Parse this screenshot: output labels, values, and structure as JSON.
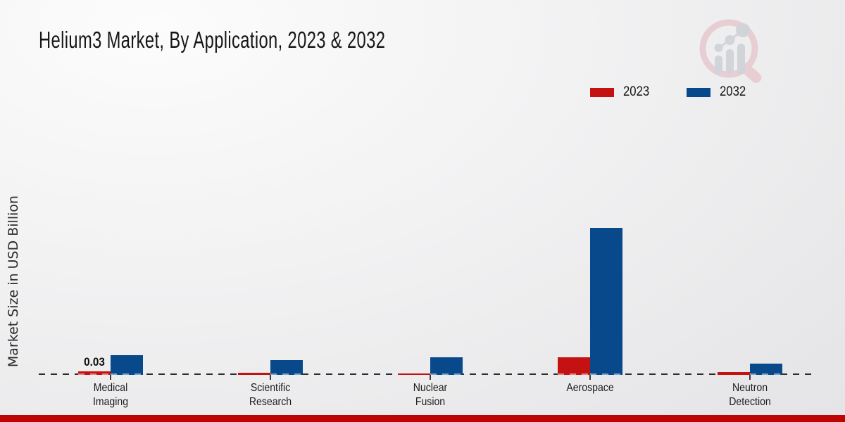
{
  "header": {
    "title": "Helium3 Market, By Application, 2023 & 2032"
  },
  "legend": {
    "items": [
      {
        "label": "2023",
        "color": "#c41212"
      },
      {
        "label": "2032",
        "color": "#07498a"
      }
    ]
  },
  "chart_data": {
    "type": "bar",
    "title": "Helium3 Market, By Application, 2023 & 2032",
    "xlabel": "",
    "ylabel": "Market Size in USD Billion",
    "categories": [
      "Medical Imaging",
      "Scientific Research",
      "Nuclear Fusion",
      "Aerospace",
      "Neutron Detection"
    ],
    "series": [
      {
        "name": "2023",
        "color": "#c41212",
        "values": [
          0.03,
          0.015,
          0.01,
          0.14,
          0.02
        ],
        "point_labels": [
          "0.03",
          "",
          "",
          "",
          ""
        ]
      },
      {
        "name": "2032",
        "color": "#07498a",
        "values": [
          0.16,
          0.12,
          0.14,
          1.18,
          0.09
        ],
        "point_labels": [
          "",
          "",
          "",
          "",
          ""
        ]
      }
    ],
    "ylim": [
      0,
      1.3
    ],
    "grid": false,
    "legend_position": "top-right",
    "baseline_style": "dashed",
    "bar_label_shown": "0.03"
  },
  "footer": {
    "accent_color": "#bf0202"
  },
  "watermark": {
    "name": "market-research-magnifier-logo",
    "ring_color": "#e6c9cd",
    "bar_color": "#ccd0d5"
  }
}
